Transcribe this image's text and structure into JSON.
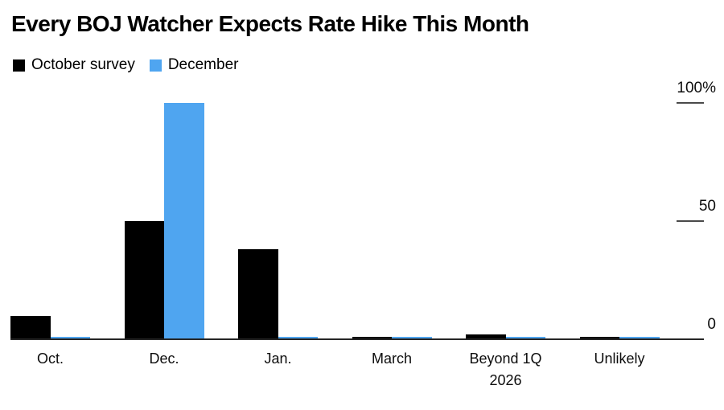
{
  "chart_data": {
    "type": "bar",
    "title": "Every BOJ Watcher Expects Rate Hike This Month",
    "categories": [
      "Oct.",
      "Dec.",
      "Jan.",
      "March",
      "Beyond 1Q\n2026",
      "Unlikely"
    ],
    "series": [
      {
        "name": "October survey",
        "color": "#000000",
        "values": [
          10,
          50,
          38,
          1,
          2,
          1
        ]
      },
      {
        "name": "December",
        "color": "#4fa5f0",
        "values": [
          1,
          100,
          1,
          1,
          1,
          1
        ]
      }
    ],
    "unit": "%",
    "ylim": [
      0,
      100
    ],
    "y_ticks": [
      {
        "label": "100%",
        "value": 100
      },
      {
        "label": "50",
        "value": 50
      },
      {
        "label": "0",
        "value": 0
      }
    ],
    "grid": false,
    "legend_position": "top-left",
    "y_axis_side": "right"
  },
  "colors": {
    "background": "#ffffff",
    "axis_line": "#262626",
    "tick_line": "#4a4a4a",
    "text": "#000000"
  }
}
